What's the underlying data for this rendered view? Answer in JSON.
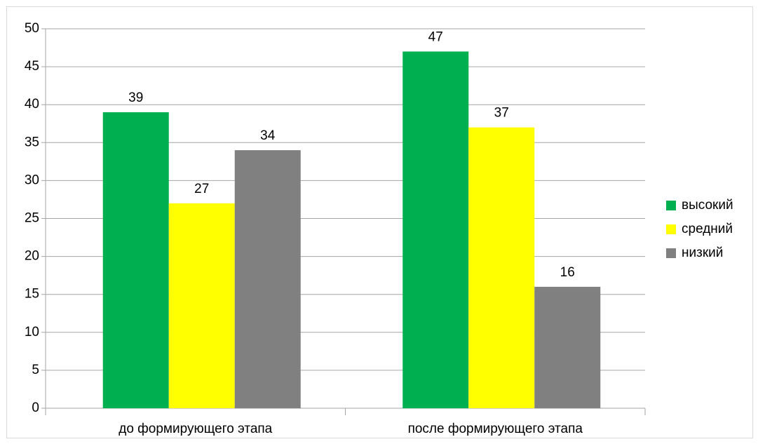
{
  "chart_data": {
    "type": "bar",
    "categories": [
      "до формирующего этапа",
      "после формирующего этапа"
    ],
    "series": [
      {
        "name": "высокий",
        "color": "#00b050",
        "values": [
          39,
          47
        ]
      },
      {
        "name": "средний",
        "color": "#ffff00",
        "values": [
          27,
          37
        ]
      },
      {
        "name": "низкий",
        "color": "#808080",
        "values": [
          34,
          16
        ]
      }
    ],
    "ylim": [
      0,
      50
    ],
    "yticks": [
      0,
      5,
      10,
      15,
      20,
      25,
      30,
      35,
      40,
      45,
      50
    ],
    "grid": true,
    "legend": "right"
  }
}
